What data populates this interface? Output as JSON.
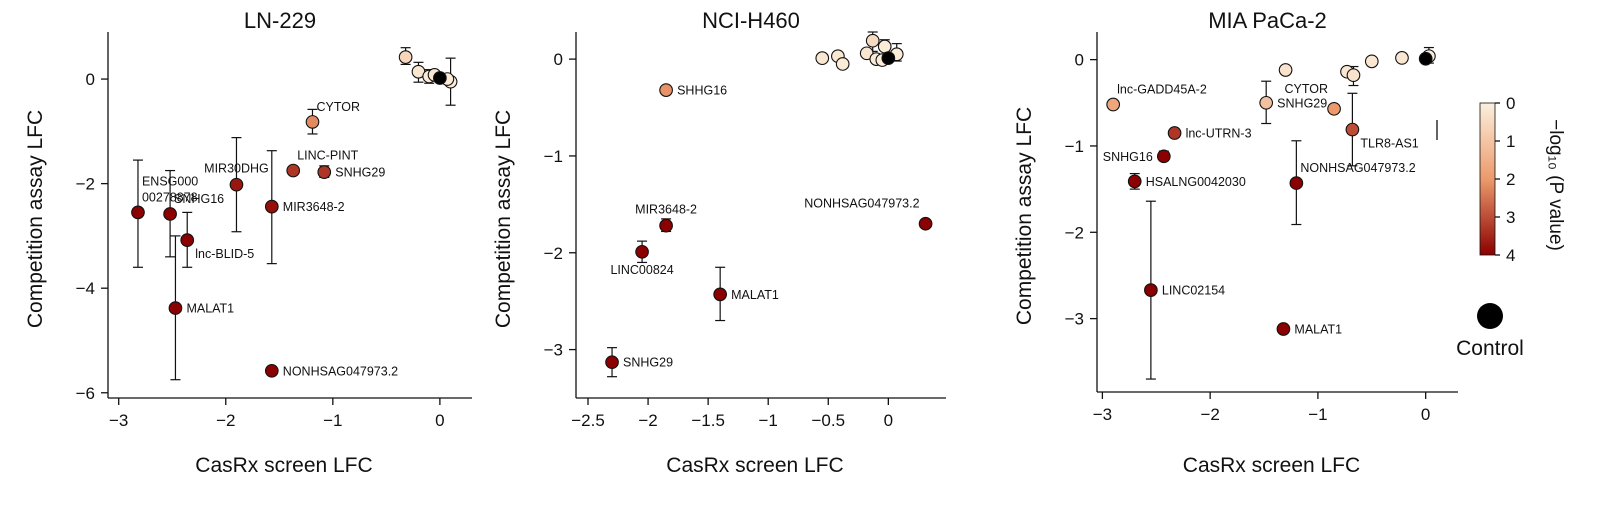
{
  "colorbar": {
    "title": "−log₁₀ (P value)",
    "ticks": [
      0,
      1,
      2,
      3,
      4
    ],
    "range": [
      0,
      4
    ],
    "color_low": "#fbf0dd",
    "color_mid": "#ec9a6c",
    "color_high": "#8b0000"
  },
  "control_legend": {
    "label": "Control",
    "color": "#000000"
  },
  "chart_data": [
    {
      "type": "scatter",
      "title": "LN-229",
      "xlabel": "CasRx screen LFC",
      "ylabel": "Competition assay LFC",
      "xlim": [
        -3.1,
        0.3
      ],
      "ylim": [
        -6.1,
        0.9
      ],
      "xticks": [
        -3,
        -2,
        -1,
        0
      ],
      "yticks": [
        -6,
        -4,
        -2,
        0
      ],
      "points": [
        {
          "label": "ENSG00000278878",
          "label_lines": [
            "ENSG000",
            "00278878"
          ],
          "label_pos": "above-right",
          "x": -2.82,
          "y": -2.55,
          "p": 4,
          "err_low": -3.6,
          "err_high": -1.55
        },
        {
          "label": "SNHG16",
          "label_pos": "above-right",
          "x": -2.52,
          "y": -2.58,
          "p": 4,
          "err_low": -3.4,
          "err_high": -1.75
        },
        {
          "label": "lnc-BLID-5",
          "label_pos": "below-right",
          "x": -2.36,
          "y": -3.08,
          "p": 4,
          "err_low": -3.6,
          "err_high": -2.55
        },
        {
          "label": "MALAT1",
          "label_pos": "right",
          "x": -2.47,
          "y": -4.38,
          "p": 4,
          "err_low": -5.75,
          "err_high": -3.0
        },
        {
          "label": "MIR30DHG",
          "label_pos": "above",
          "x": -1.9,
          "y": -2.02,
          "p": 3.7,
          "err_low": -2.92,
          "err_high": -1.12
        },
        {
          "label": "MIR3648-2",
          "label_pos": "right",
          "x": -1.57,
          "y": -2.44,
          "p": 3.8,
          "err_low": -3.53,
          "err_high": -1.37
        },
        {
          "label": "NONHSAG047973.2",
          "label_pos": "right",
          "x": -1.57,
          "y": -5.58,
          "p": 4
        },
        {
          "label": "LINC-PINT",
          "label_pos": "above-right",
          "x": -1.37,
          "y": -1.75,
          "p": 3.3
        },
        {
          "label": "SNHG29",
          "label_pos": "right",
          "x": -1.08,
          "y": -1.78,
          "p": 3.3,
          "err_low": -1.88,
          "err_high": -1.66
        },
        {
          "label": "CYTOR",
          "label_pos": "above-right",
          "x": -1.19,
          "y": -0.82,
          "p": 2.2,
          "err_low": -1.05,
          "err_high": -0.58
        },
        {
          "label": "",
          "x": -0.32,
          "y": 0.42,
          "p": 0.6,
          "err_low": 0.28,
          "err_high": 0.6
        },
        {
          "label": "",
          "x": -0.2,
          "y": 0.14,
          "p": 0.2,
          "err_low": -0.06,
          "err_high": 0.32
        },
        {
          "label": "",
          "x": -0.1,
          "y": 0.05,
          "p": 0.1,
          "err_low": -0.08,
          "err_high": 0.18
        },
        {
          "label": "",
          "x": -0.05,
          "y": 0.08,
          "p": 0.2
        },
        {
          "label": "",
          "x": 0.1,
          "y": -0.05,
          "p": 0.1,
          "err_low": -0.5,
          "err_high": 0.4
        },
        {
          "label": "",
          "x": 0.07,
          "y": 0.0,
          "p": 0.1
        },
        {
          "label": "",
          "x": 0.0,
          "y": 0.02,
          "p": 0,
          "control": true
        }
      ]
    },
    {
      "type": "scatter",
      "title": "NCI-H460",
      "xlabel": "CasRx screen LFC",
      "ylabel": "Competition assay LFC",
      "xlim": [
        -2.6,
        0.48
      ],
      "ylim": [
        -3.5,
        0.28
      ],
      "xticks": [
        -2.5,
        -2,
        -1.5,
        -1,
        -0.5,
        0
      ],
      "yticks": [
        -3,
        -2,
        -1,
        0
      ],
      "points": [
        {
          "label": "SHHG16",
          "label_pos": "right",
          "x": -1.85,
          "y": -0.32,
          "p": 2.1
        },
        {
          "label": "MIR3648-2",
          "label_pos": "above",
          "x": -1.85,
          "y": -1.72,
          "p": 4,
          "err_low": -1.78,
          "err_high": -1.65
        },
        {
          "label": "LINC00824",
          "label_pos": "below",
          "x": -2.05,
          "y": -1.99,
          "p": 4,
          "err_low": -2.1,
          "err_high": -1.88
        },
        {
          "label": "MALAT1",
          "label_pos": "right",
          "x": -1.4,
          "y": -2.43,
          "p": 4,
          "err_low": -2.7,
          "err_high": -2.15
        },
        {
          "label": "SNHG29",
          "label_pos": "right",
          "x": -2.3,
          "y": -3.13,
          "p": 4,
          "err_low": -3.28,
          "err_high": -2.98
        },
        {
          "label": "NONHSAG047973.2",
          "label_pos": "above-left",
          "x": 0.31,
          "y": -1.7,
          "p": 4
        },
        {
          "label": "",
          "x": -0.55,
          "y": 0.01,
          "p": 0.2
        },
        {
          "label": "",
          "x": -0.42,
          "y": 0.03,
          "p": 0.2
        },
        {
          "label": "",
          "x": -0.38,
          "y": -0.05,
          "p": 0.1
        },
        {
          "label": "",
          "x": -0.18,
          "y": 0.06,
          "p": 0.2
        },
        {
          "label": "",
          "x": -0.13,
          "y": 0.19,
          "p": 0.5,
          "err_low": 0.08,
          "err_high": 0.28
        },
        {
          "label": "",
          "x": -0.1,
          "y": 0.0,
          "p": 0.1
        },
        {
          "label": "",
          "x": -0.03,
          "y": 0.13,
          "p": 0.1,
          "err_low": 0.03,
          "err_high": 0.2
        },
        {
          "label": "",
          "x": -0.05,
          "y": -0.01,
          "p": 0.1
        },
        {
          "label": "",
          "x": 0.07,
          "y": 0.05,
          "p": 0.1,
          "err_low": -0.02,
          "err_high": 0.16
        },
        {
          "label": "",
          "x": 0.0,
          "y": 0.01,
          "p": 0,
          "control": true
        }
      ]
    },
    {
      "type": "scatter",
      "title": "MIA PaCa-2",
      "xlabel": "CasRx screen LFC",
      "ylabel": "Competition assay LFC",
      "xlim": [
        -3.05,
        0.3
      ],
      "ylim": [
        -3.85,
        0.32
      ],
      "xticks": [
        -3,
        -2,
        -1,
        0
      ],
      "yticks": [
        -3,
        -2,
        -1,
        0
      ],
      "points": [
        {
          "label": "lnc-GADD45A-2",
          "label_pos": "above-right",
          "x": -2.9,
          "y": -0.52,
          "p": 1.7
        },
        {
          "label": "lnc-UTRN-3",
          "label_pos": "right",
          "x": -2.33,
          "y": -0.85,
          "p": 3.3
        },
        {
          "label": "SNHG16",
          "label_pos": "left",
          "x": -2.43,
          "y": -1.12,
          "p": 4,
          "err_low": -1.17,
          "err_high": -1.06
        },
        {
          "label": "HSALNG0042030",
          "label_pos": "right",
          "x": -2.7,
          "y": -1.41,
          "p": 4,
          "err_low": -1.5,
          "err_high": -1.32
        },
        {
          "label": "LINC02154",
          "label_pos": "right",
          "x": -2.55,
          "y": -2.67,
          "p": 4,
          "err_low": -3.7,
          "err_high": -1.64
        },
        {
          "label": "MALAT1",
          "label_pos": "right",
          "x": -1.32,
          "y": -3.12,
          "p": 4
        },
        {
          "label": "SNHG29",
          "label_pos": "right",
          "x": -1.48,
          "y": -0.5,
          "p": 1.1,
          "err_low": -0.74,
          "err_high": -0.25
        },
        {
          "label": "CYTOR",
          "label_pos": "above-left",
          "x": -0.85,
          "y": -0.57,
          "p": 2.0
        },
        {
          "label": "NONHSAG047973.2",
          "label_pos": "above-right",
          "x": -1.2,
          "y": -1.43,
          "p": 4,
          "err_low": -1.91,
          "err_high": -0.94
        },
        {
          "label": "TLR8-AS1",
          "label_pos": "below-right",
          "x": -0.68,
          "y": -0.81,
          "p": 3.0,
          "err_low": -1.23,
          "err_high": -0.39
        },
        {
          "label": "",
          "x": -1.3,
          "y": -0.12,
          "p": 0.3
        },
        {
          "label": "",
          "x": -0.73,
          "y": -0.14,
          "p": 0.2
        },
        {
          "label": "",
          "x": -0.67,
          "y": -0.18,
          "p": 0.3,
          "err_low": -0.3,
          "err_high": -0.08
        },
        {
          "label": "",
          "x": -0.5,
          "y": -0.02,
          "p": 0.2
        },
        {
          "label": "",
          "x": -0.22,
          "y": 0.02,
          "p": 0.2
        },
        {
          "label": "",
          "x": 0.03,
          "y": 0.04,
          "p": 0.1,
          "err_low": -0.04,
          "err_high": 0.14
        },
        {
          "label": "",
          "x": 0.0,
          "y": 0.01,
          "p": 0,
          "control": true
        }
      ]
    }
  ]
}
